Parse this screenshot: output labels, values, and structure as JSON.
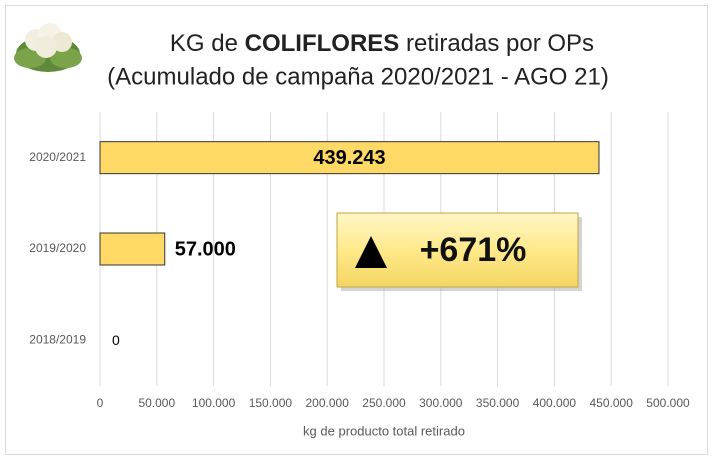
{
  "chart_data": {
    "type": "bar",
    "orientation": "horizontal",
    "title": [
      "KG de ",
      "COLIFLORES",
      " retiradas por OPs"
    ],
    "subtitle": "(Acumulado de campaña 2020/2021 - AGO 21)",
    "categories": [
      "2020/2021",
      "2019/2020",
      "2018/2019"
    ],
    "values": [
      439243,
      57000,
      0
    ],
    "value_labels": [
      "439.243",
      "57.000",
      "0"
    ],
    "color": "#ffd966",
    "xlabel": "kg de producto total retirado",
    "xlim": [
      0,
      500000
    ],
    "xticks": [
      0,
      {
        "value": 50000,
        "label": "50.000"
      },
      {
        "value": 100000,
        "label": "100.000"
      },
      {
        "value": 150000,
        "label": "150.000"
      },
      {
        "value": 200000,
        "label": "200.000"
      },
      {
        "value": 250000,
        "label": "250.000"
      },
      {
        "value": 300000,
        "label": "300.000"
      },
      {
        "value": 350000,
        "label": "350.000"
      },
      {
        "value": 400000,
        "label": "400.000"
      },
      {
        "value": 450000,
        "label": "450.000"
      },
      {
        "value": 500000,
        "label": "500.000"
      }
    ],
    "grid": true,
    "annotation": "+671%"
  }
}
